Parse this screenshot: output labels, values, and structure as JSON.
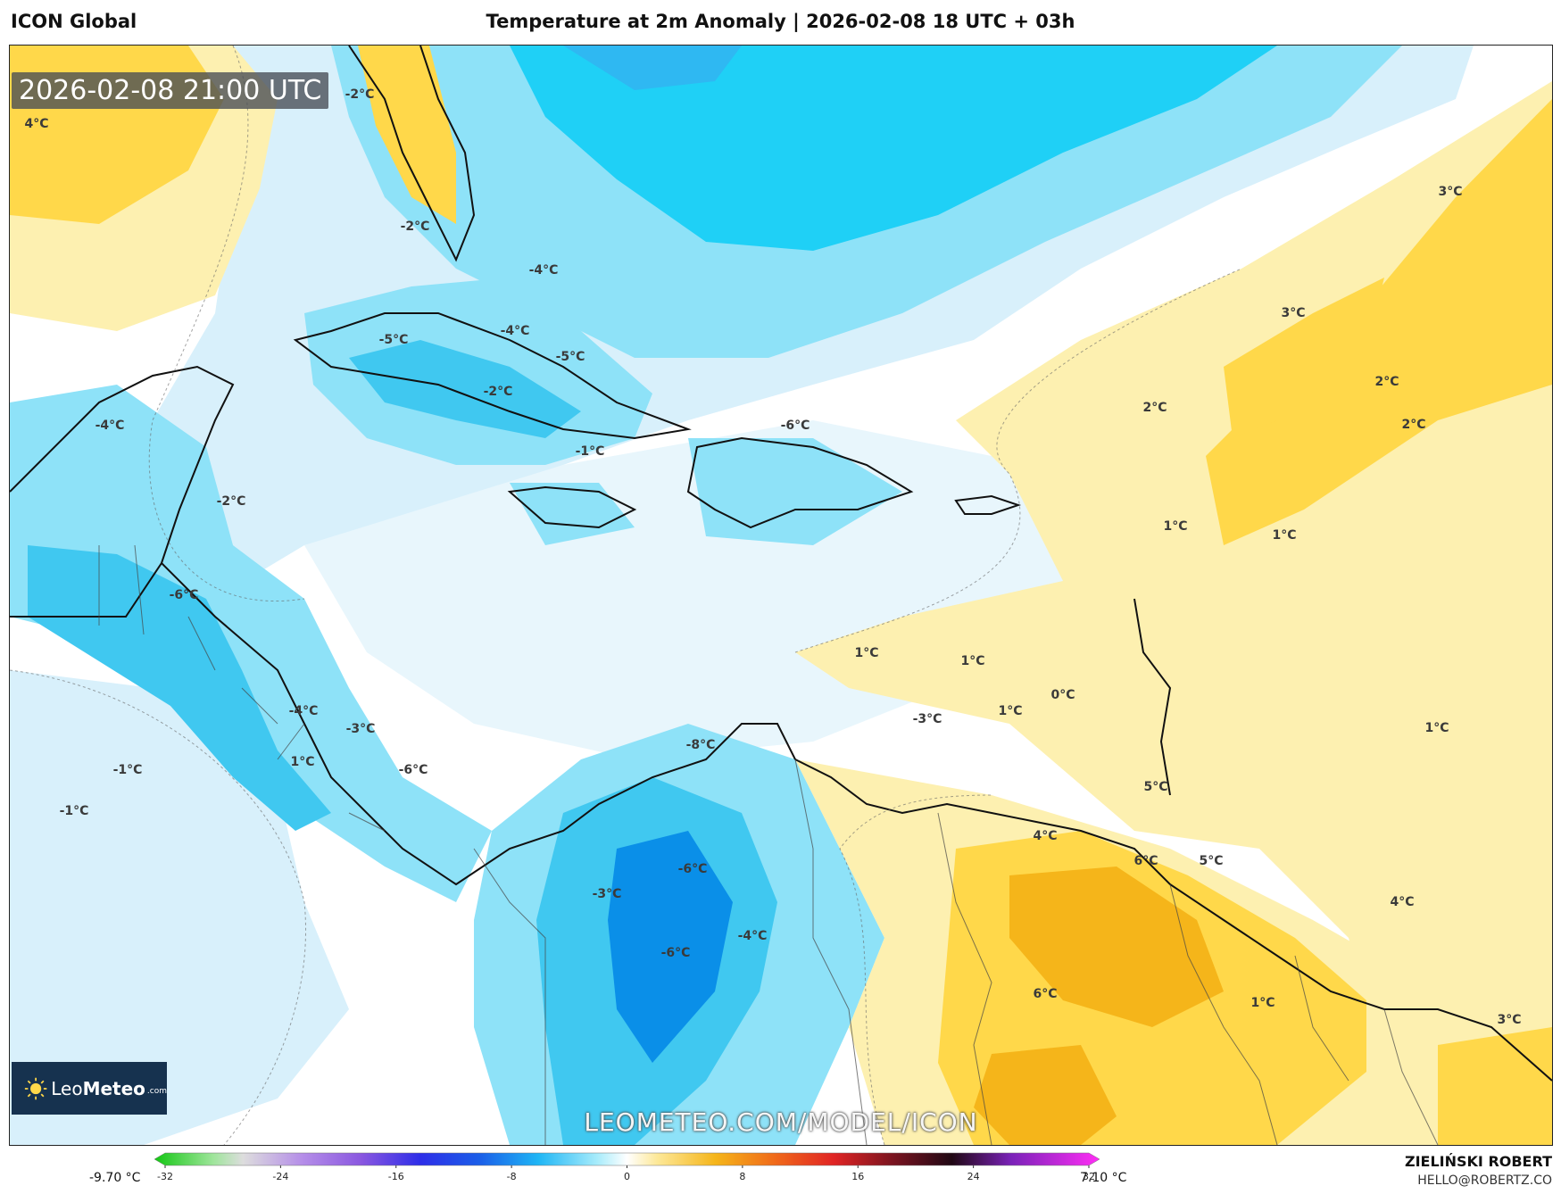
{
  "header": {
    "model": "ICON Global",
    "title": "Temperature at 2m Anomaly | 2026-02-08 18 UTC + 03h"
  },
  "map": {
    "valid_time": "2026-02-08 21:00 UTC",
    "watermark": "LEOMETEO.COM/MODEL/ICON",
    "logo": {
      "name_light": "Leo",
      "name_bold": "Meteo",
      "suffix": ".com"
    },
    "labels": [
      "4°C",
      "-2°C",
      "-2°C",
      "-4°C",
      "-4°C",
      "-5°C",
      "-5°C",
      "-2°C",
      "-4°C",
      "-1°C",
      "-6°C",
      "-2°C",
      "-6°C",
      "3°C",
      "3°C",
      "2°C",
      "2°C",
      "2°C",
      "1°C",
      "1°C",
      "1°C",
      "1°C",
      "0°C",
      "1°C",
      "-3°C",
      "-4°C",
      "-3°C",
      "1°C",
      "-1°C",
      "-1°C",
      "-6°C",
      "-8°C",
      "5°C",
      "4°C",
      "6°C",
      "5°C",
      "-6°C",
      "-3°C",
      "-4°C",
      "-6°C",
      "1°C",
      "4°C",
      "6°C",
      "1°C",
      "3°C"
    ],
    "colors": {
      "ocean": "#ffffff",
      "light_blue": "#d8f0fb",
      "blue": "#8ee2f8",
      "cyan": "#1fd0f6",
      "deep_blue": "#0a8fe8",
      "light_yellow": "#fdf0b0",
      "yellow": "#ffd84a",
      "orange": "#f5b51a",
      "coast": "#111111",
      "border": "#444444"
    }
  },
  "colorbar": {
    "min_label": "-9.70 °C",
    "max_label": "7.10 °C",
    "ticks": [
      "-32",
      "-24",
      "-16",
      "-8",
      "0",
      "8",
      "16",
      "24",
      "32"
    ],
    "tick_values": [
      -32,
      -24,
      -16,
      -8,
      0,
      8,
      16,
      24,
      32
    ],
    "range": [
      -32,
      32
    ],
    "stops": [
      {
        "v": -32,
        "c": "#13c713"
      },
      {
        "v": -28,
        "c": "#9fe59b"
      },
      {
        "v": -26,
        "c": "#dddddd"
      },
      {
        "v": -22,
        "c": "#b58ee8"
      },
      {
        "v": -18,
        "c": "#8a57e0"
      },
      {
        "v": -14,
        "c": "#2e2ee8"
      },
      {
        "v": -10,
        "c": "#1b5ee8"
      },
      {
        "v": -6,
        "c": "#1fb6f5"
      },
      {
        "v": -2,
        "c": "#a8ecfb"
      },
      {
        "v": 0,
        "c": "#ffffff"
      },
      {
        "v": 2,
        "c": "#fde99a"
      },
      {
        "v": 6,
        "c": "#f5b51a"
      },
      {
        "v": 10,
        "c": "#f06a1a"
      },
      {
        "v": 14,
        "c": "#e02424"
      },
      {
        "v": 18,
        "c": "#7a1420"
      },
      {
        "v": 22,
        "c": "#200814"
      },
      {
        "v": 26,
        "c": "#7a22b8"
      },
      {
        "v": 32,
        "c": "#ff2ef5"
      }
    ]
  },
  "footer": {
    "author": "ZIELIŃSKI ROBERT",
    "email": "HELLO@ROBERTZ.CO"
  }
}
